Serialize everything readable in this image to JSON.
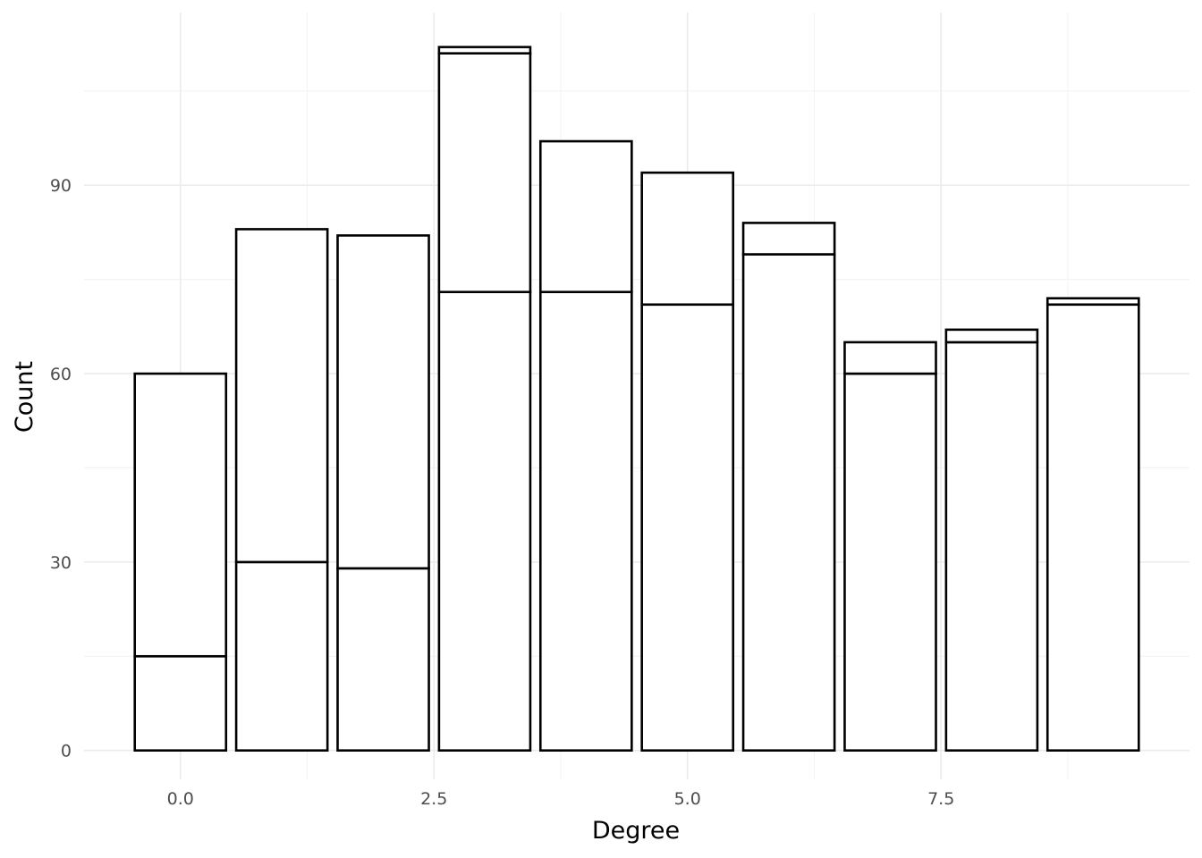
{
  "chart_data": {
    "type": "bar",
    "stacked": true,
    "xlabel": "Degree",
    "ylabel": "Count",
    "x": [
      0,
      1,
      2,
      3,
      4,
      5,
      6,
      7,
      8,
      9
    ],
    "series": [
      {
        "values": [
          15,
          30,
          29,
          73,
          73,
          71,
          79,
          60,
          65,
          71
        ]
      },
      {
        "values": [
          45,
          53,
          53,
          38,
          24,
          21,
          0,
          5,
          2,
          1
        ]
      },
      {
        "values": [
          0,
          0,
          0,
          1,
          0,
          0,
          5,
          0,
          0,
          0
        ]
      }
    ],
    "x_ticks": [
      "0.0",
      "2.5",
      "5.0",
      "7.5"
    ],
    "x_tick_values": [
      0,
      2.5,
      5,
      7.5
    ],
    "y_ticks": [
      "0",
      "30",
      "60",
      "90"
    ],
    "y_tick_values": [
      0,
      30,
      60,
      90
    ],
    "xlim": [
      -0.95,
      9.95
    ],
    "ylim": [
      -4.6,
      117.5
    ],
    "grid": true,
    "legend": "none",
    "fill_color": "#ffffff",
    "outline_color": "#000000"
  }
}
